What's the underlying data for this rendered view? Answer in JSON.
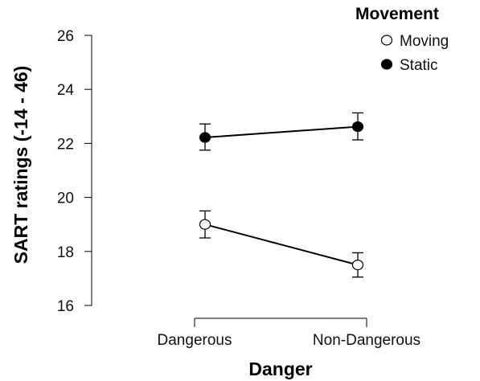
{
  "chart_data": {
    "type": "line",
    "title": "",
    "xlabel": "Danger",
    "ylabel": "SART ratings (-14 - 46)",
    "categories": [
      "Dangerous",
      "Non-Dangerous"
    ],
    "ylim": [
      16,
      26
    ],
    "yticks": [
      "16",
      "18",
      "20",
      "22",
      "24",
      "26"
    ],
    "grid": false,
    "legend": {
      "title": "Movement",
      "placement": "top-right"
    },
    "series": [
      {
        "name": "Moving",
        "marker": "open-circle",
        "color": "#000000",
        "values": [
          19.0,
          17.5
        ],
        "error_low": [
          18.5,
          17.05
        ],
        "error_high": [
          19.5,
          17.95
        ]
      },
      {
        "name": "Static",
        "marker": "filled-circle",
        "color": "#000000",
        "values": [
          22.22,
          22.62
        ],
        "error_low": [
          21.75,
          22.13
        ],
        "error_high": [
          22.72,
          23.13
        ]
      }
    ]
  }
}
